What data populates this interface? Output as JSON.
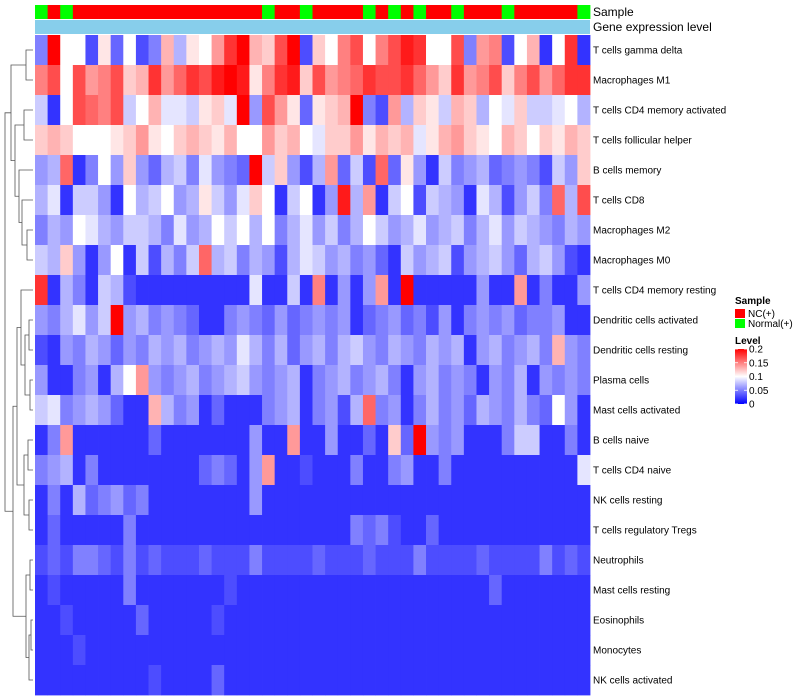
{
  "chart_data": {
    "type": "heatmap",
    "title": "",
    "annotation_tracks": {
      "sample": {
        "label": "Sample",
        "values": [
          "Normal(+)",
          "NC(+)",
          "Normal(+)",
          "NC(+)",
          "NC(+)",
          "NC(+)",
          "NC(+)",
          "NC(+)",
          "NC(+)",
          "NC(+)",
          "NC(+)",
          "NC(+)",
          "NC(+)",
          "NC(+)",
          "NC(+)",
          "NC(+)",
          "NC(+)",
          "NC(+)",
          "Normal(+)",
          "NC(+)",
          "NC(+)",
          "Normal(+)",
          "NC(+)",
          "NC(+)",
          "NC(+)",
          "NC(+)",
          "Normal(+)",
          "NC(+)",
          "Normal(+)",
          "NC(+)",
          "Normal(+)",
          "NC(+)",
          "NC(+)",
          "Normal(+)",
          "NC(+)",
          "NC(+)",
          "NC(+)",
          "Normal(+)",
          "NC(+)",
          "NC(+)",
          "NC(+)",
          "NC(+)",
          "NC(+)",
          "Normal(+)"
        ]
      },
      "gene_expression": {
        "label": "Gene expression level"
      }
    },
    "rows": [
      "T cells gamma delta",
      "Macrophages M1",
      "T cells CD4 memory activated",
      "T cells follicular helper",
      "B cells memory",
      "T cells CD8",
      "Macrophages M2",
      "Macrophages M0",
      "T cells CD4 memory resting",
      "Dendritic cells activated",
      "Dendritic cells resting",
      "Plasma cells",
      "Mast cells activated",
      "B cells naive",
      "T cells CD4 naive",
      "NK cells resting",
      "T cells regulatory  Tregs",
      "Neutrophils",
      "Mast cells resting",
      "Eosinophils",
      "Monocytes",
      "NK cells activated"
    ],
    "n_cols": 44,
    "value_range": [
      0,
      0.2
    ],
    "values": [
      [
        0.05,
        0.2,
        0.1,
        0.1,
        0.03,
        0.11,
        0.04,
        0.1,
        0.03,
        0.05,
        0.13,
        0.07,
        0.11,
        0.1,
        0.14,
        0.18,
        0.2,
        0.13,
        0.12,
        0.17,
        0.2,
        0.03,
        0.12,
        0.1,
        0.15,
        0.17,
        0.1,
        0.15,
        0.17,
        0.19,
        0.18,
        0.1,
        0.1,
        0.17,
        0.05,
        0.14,
        0.15,
        0.03,
        0.1,
        0.13,
        0.02,
        0.1,
        0.18,
        0.02
      ],
      [
        0.15,
        0.17,
        0.1,
        0.17,
        0.14,
        0.15,
        0.17,
        0.12,
        0.13,
        0.18,
        0.14,
        0.16,
        0.18,
        0.17,
        0.19,
        0.2,
        0.19,
        0.11,
        0.15,
        0.18,
        0.19,
        0.12,
        0.17,
        0.14,
        0.15,
        0.16,
        0.18,
        0.17,
        0.17,
        0.18,
        0.16,
        0.14,
        0.12,
        0.18,
        0.14,
        0.15,
        0.17,
        0.12,
        0.15,
        0.17,
        0.14,
        0.16,
        0.18,
        0.18
      ],
      [
        0.08,
        0.02,
        0.1,
        0.17,
        0.16,
        0.15,
        0.17,
        0.08,
        0.1,
        0.13,
        0.09,
        0.09,
        0.08,
        0.11,
        0.12,
        0.09,
        0.2,
        0.06,
        0.17,
        0.14,
        0.11,
        0.04,
        0.11,
        0.12,
        0.13,
        0.2,
        0.05,
        0.03,
        0.14,
        0.07,
        0.12,
        0.11,
        0.08,
        0.13,
        0.12,
        0.07,
        0.1,
        0.09,
        0.12,
        0.08,
        0.08,
        0.09,
        0.1,
        0.07
      ],
      [
        0.12,
        0.13,
        0.12,
        0.1,
        0.1,
        0.1,
        0.11,
        0.12,
        0.14,
        0.11,
        0.1,
        0.12,
        0.13,
        0.12,
        0.11,
        0.13,
        0.1,
        0.1,
        0.14,
        0.12,
        0.13,
        0.1,
        0.09,
        0.12,
        0.12,
        0.14,
        0.11,
        0.13,
        0.12,
        0.13,
        0.09,
        0.11,
        0.13,
        0.14,
        0.12,
        0.11,
        0.1,
        0.13,
        0.12,
        0.1,
        0.12,
        0.11,
        0.13,
        0.12
      ],
      [
        0.06,
        0.07,
        0.16,
        0.02,
        0.05,
        0.1,
        0.06,
        0.12,
        0.06,
        0.04,
        0.07,
        0.08,
        0.05,
        0.09,
        0.06,
        0.05,
        0.04,
        0.2,
        0.08,
        0.12,
        0.06,
        0.03,
        0.07,
        0.14,
        0.04,
        0.08,
        0.03,
        0.16,
        0.04,
        0.11,
        0.06,
        0.02,
        0.08,
        0.05,
        0.06,
        0.07,
        0.04,
        0.05,
        0.06,
        0.05,
        0.03,
        0.08,
        0.06,
        0.12
      ],
      [
        0.07,
        0.09,
        0.02,
        0.08,
        0.08,
        0.06,
        0.02,
        0.1,
        0.07,
        0.08,
        0.1,
        0.06,
        0.07,
        0.11,
        0.08,
        0.06,
        0.09,
        0.12,
        0.1,
        0.02,
        0.08,
        0.1,
        0.02,
        0.06,
        0.19,
        0.07,
        0.14,
        0.02,
        0.08,
        0.1,
        0.03,
        0.08,
        0.07,
        0.06,
        0.02,
        0.09,
        0.07,
        0.03,
        0.06,
        0.08,
        0.05,
        0.16,
        0.07,
        0.17
      ],
      [
        0.05,
        0.07,
        0.06,
        0.1,
        0.09,
        0.07,
        0.06,
        0.08,
        0.08,
        0.07,
        0.05,
        0.09,
        0.06,
        0.07,
        0.1,
        0.08,
        0.1,
        0.07,
        0.1,
        0.05,
        0.07,
        0.09,
        0.06,
        0.08,
        0.05,
        0.07,
        0.1,
        0.08,
        0.06,
        0.07,
        0.09,
        0.06,
        0.07,
        0.08,
        0.05,
        0.07,
        0.09,
        0.06,
        0.08,
        0.07,
        0.06,
        0.05,
        0.07,
        0.06
      ],
      [
        0.08,
        0.07,
        0.12,
        0.06,
        0.02,
        0.06,
        0.1,
        0.02,
        0.08,
        0.03,
        0.07,
        0.05,
        0.08,
        0.16,
        0.07,
        0.08,
        0.05,
        0.07,
        0.06,
        0.03,
        0.07,
        0.09,
        0.08,
        0.06,
        0.07,
        0.05,
        0.06,
        0.04,
        0.02,
        0.08,
        0.06,
        0.07,
        0.08,
        0.03,
        0.06,
        0.07,
        0.08,
        0.06,
        0.04,
        0.07,
        0.08,
        0.06,
        0.03,
        0.02
      ],
      [
        0.18,
        0.02,
        0.07,
        0.05,
        0.02,
        0.08,
        0.07,
        0.03,
        0.02,
        0.02,
        0.02,
        0.02,
        0.02,
        0.02,
        0.02,
        0.02,
        0.02,
        0.09,
        0.02,
        0.02,
        0.08,
        0.02,
        0.15,
        0.02,
        0.06,
        0.02,
        0.06,
        0.14,
        0.02,
        0.2,
        0.02,
        0.02,
        0.02,
        0.02,
        0.02,
        0.06,
        0.02,
        0.02,
        0.14,
        0.02,
        0.05,
        0.02,
        0.02,
        0.06
      ],
      [
        0.06,
        0.05,
        0.07,
        0.09,
        0.06,
        0.08,
        0.2,
        0.06,
        0.07,
        0.05,
        0.06,
        0.05,
        0.04,
        0.02,
        0.02,
        0.05,
        0.06,
        0.05,
        0.04,
        0.06,
        0.04,
        0.05,
        0.06,
        0.05,
        0.06,
        0.02,
        0.04,
        0.05,
        0.06,
        0.04,
        0.05,
        0.03,
        0.06,
        0.02,
        0.05,
        0.06,
        0.05,
        0.06,
        0.04,
        0.05,
        0.05,
        0.06,
        0.02,
        0.02
      ],
      [
        0.03,
        0.02,
        0.06,
        0.05,
        0.07,
        0.06,
        0.04,
        0.06,
        0.05,
        0.07,
        0.06,
        0.07,
        0.05,
        0.06,
        0.07,
        0.06,
        0.09,
        0.07,
        0.05,
        0.07,
        0.04,
        0.06,
        0.07,
        0.05,
        0.07,
        0.08,
        0.06,
        0.05,
        0.07,
        0.06,
        0.05,
        0.07,
        0.06,
        0.07,
        0.02,
        0.06,
        0.07,
        0.05,
        0.06,
        0.07,
        0.05,
        0.13,
        0.06,
        0.05
      ],
      [
        0.06,
        0.02,
        0.02,
        0.05,
        0.06,
        0.02,
        0.07,
        0.1,
        0.14,
        0.06,
        0.05,
        0.06,
        0.07,
        0.05,
        0.06,
        0.07,
        0.08,
        0.06,
        0.05,
        0.06,
        0.07,
        0.02,
        0.05,
        0.06,
        0.07,
        0.05,
        0.06,
        0.07,
        0.05,
        0.02,
        0.06,
        0.07,
        0.05,
        0.06,
        0.05,
        0.02,
        0.06,
        0.05,
        0.07,
        0.02,
        0.06,
        0.05,
        0.06,
        0.05
      ],
      [
        0.08,
        0.09,
        0.05,
        0.06,
        0.07,
        0.06,
        0.04,
        0.02,
        0.02,
        0.13,
        0.07,
        0.05,
        0.06,
        0.02,
        0.04,
        0.02,
        0.02,
        0.02,
        0.05,
        0.06,
        0.07,
        0.02,
        0.05,
        0.06,
        0.03,
        0.07,
        0.16,
        0.05,
        0.06,
        0.02,
        0.05,
        0.07,
        0.05,
        0.06,
        0.04,
        0.07,
        0.06,
        0.05,
        0.07,
        0.05,
        0.04,
        0.1,
        0.06,
        0.02
      ],
      [
        0.02,
        0.05,
        0.14,
        0.02,
        0.02,
        0.02,
        0.02,
        0.02,
        0.02,
        0.04,
        0.02,
        0.02,
        0.02,
        0.02,
        0.02,
        0.02,
        0.02,
        0.06,
        0.02,
        0.02,
        0.14,
        0.02,
        0.02,
        0.06,
        0.02,
        0.02,
        0.04,
        0.02,
        0.12,
        0.04,
        0.2,
        0.06,
        0.05,
        0.06,
        0.02,
        0.02,
        0.02,
        0.05,
        0.08,
        0.08,
        0.02,
        0.02,
        0.05,
        0.02
      ],
      [
        0.05,
        0.06,
        0.07,
        0.02,
        0.05,
        0.02,
        0.02,
        0.02,
        0.02,
        0.02,
        0.02,
        0.02,
        0.02,
        0.04,
        0.05,
        0.04,
        0.02,
        0.06,
        0.14,
        0.02,
        0.02,
        0.03,
        0.02,
        0.02,
        0.02,
        0.05,
        0.02,
        0.02,
        0.05,
        0.06,
        0.02,
        0.02,
        0.05,
        0.02,
        0.02,
        0.02,
        0.02,
        0.02,
        0.02,
        0.02,
        0.02,
        0.02,
        0.02,
        0.09
      ],
      [
        0.02,
        0.05,
        0.02,
        0.07,
        0.04,
        0.05,
        0.06,
        0.04,
        0.05,
        0.02,
        0.02,
        0.02,
        0.02,
        0.02,
        0.02,
        0.02,
        0.02,
        0.06,
        0.02,
        0.02,
        0.02,
        0.02,
        0.02,
        0.02,
        0.02,
        0.02,
        0.02,
        0.02,
        0.02,
        0.02,
        0.02,
        0.02,
        0.02,
        0.02,
        0.02,
        0.02,
        0.02,
        0.02,
        0.02,
        0.02,
        0.02,
        0.02,
        0.02,
        0.02
      ],
      [
        0.02,
        0.04,
        0.02,
        0.02,
        0.02,
        0.02,
        0.02,
        0.05,
        0.02,
        0.02,
        0.02,
        0.02,
        0.02,
        0.02,
        0.02,
        0.02,
        0.02,
        0.02,
        0.02,
        0.02,
        0.02,
        0.02,
        0.02,
        0.02,
        0.02,
        0.05,
        0.04,
        0.05,
        0.03,
        0.02,
        0.02,
        0.04,
        0.02,
        0.02,
        0.02,
        0.02,
        0.02,
        0.02,
        0.02,
        0.02,
        0.02,
        0.02,
        0.02,
        0.02
      ],
      [
        0.03,
        0.04,
        0.03,
        0.05,
        0.05,
        0.04,
        0.03,
        0.05,
        0.03,
        0.04,
        0.03,
        0.03,
        0.03,
        0.04,
        0.03,
        0.03,
        0.03,
        0.05,
        0.03,
        0.03,
        0.03,
        0.03,
        0.04,
        0.03,
        0.03,
        0.03,
        0.04,
        0.03,
        0.03,
        0.03,
        0.05,
        0.03,
        0.03,
        0.03,
        0.03,
        0.04,
        0.03,
        0.03,
        0.03,
        0.03,
        0.05,
        0.03,
        0.04,
        0.03
      ],
      [
        0.02,
        0.03,
        0.02,
        0.02,
        0.02,
        0.02,
        0.02,
        0.05,
        0.02,
        0.02,
        0.02,
        0.02,
        0.02,
        0.02,
        0.02,
        0.03,
        0.02,
        0.02,
        0.02,
        0.02,
        0.02,
        0.02,
        0.02,
        0.02,
        0.02,
        0.02,
        0.02,
        0.02,
        0.02,
        0.02,
        0.02,
        0.02,
        0.02,
        0.02,
        0.02,
        0.02,
        0.04,
        0.02,
        0.02,
        0.02,
        0.02,
        0.02,
        0.02,
        0.02
      ],
      [
        0.02,
        0.02,
        0.03,
        0.02,
        0.02,
        0.02,
        0.02,
        0.02,
        0.04,
        0.02,
        0.02,
        0.02,
        0.02,
        0.02,
        0.03,
        0.02,
        0.02,
        0.02,
        0.02,
        0.02,
        0.02,
        0.02,
        0.02,
        0.02,
        0.02,
        0.02,
        0.02,
        0.02,
        0.02,
        0.02,
        0.02,
        0.02,
        0.02,
        0.02,
        0.02,
        0.02,
        0.02,
        0.02,
        0.02,
        0.02,
        0.02,
        0.02,
        0.02,
        0.02
      ],
      [
        0.02,
        0.02,
        0.02,
        0.03,
        0.02,
        0.02,
        0.02,
        0.02,
        0.02,
        0.02,
        0.02,
        0.02,
        0.02,
        0.02,
        0.02,
        0.02,
        0.02,
        0.02,
        0.02,
        0.02,
        0.02,
        0.02,
        0.02,
        0.02,
        0.02,
        0.02,
        0.02,
        0.02,
        0.02,
        0.02,
        0.02,
        0.02,
        0.02,
        0.02,
        0.02,
        0.02,
        0.02,
        0.02,
        0.02,
        0.02,
        0.02,
        0.02,
        0.02,
        0.02
      ],
      [
        0.02,
        0.02,
        0.02,
        0.02,
        0.02,
        0.02,
        0.02,
        0.02,
        0.02,
        0.03,
        0.02,
        0.02,
        0.02,
        0.02,
        0.04,
        0.02,
        0.02,
        0.02,
        0.02,
        0.02,
        0.02,
        0.02,
        0.02,
        0.02,
        0.02,
        0.02,
        0.02,
        0.02,
        0.02,
        0.02,
        0.02,
        0.02,
        0.02,
        0.02,
        0.02,
        0.02,
        0.02,
        0.02,
        0.02,
        0.02,
        0.02,
        0.02,
        0.02,
        0.02
      ]
    ],
    "legend": {
      "sample_title": "Sample",
      "sample_items": [
        {
          "label": "NC(+)",
          "color": "#ff0000"
        },
        {
          "label": "Normal(+)",
          "color": "#00ff00"
        }
      ],
      "level_title": "Level",
      "level_ticks": [
        0.2,
        0.15,
        0.1,
        0.05,
        0
      ],
      "level_tick_labels": [
        "0.2",
        "0.15",
        "0.1",
        "0.05",
        "0"
      ],
      "placement": "right"
    },
    "colors": {
      "low": "#0000ff",
      "mid": "#ffffff",
      "high": "#ff0000",
      "gene_expression_track": "#87ceeb",
      "dendrogram": "#555555"
    }
  }
}
